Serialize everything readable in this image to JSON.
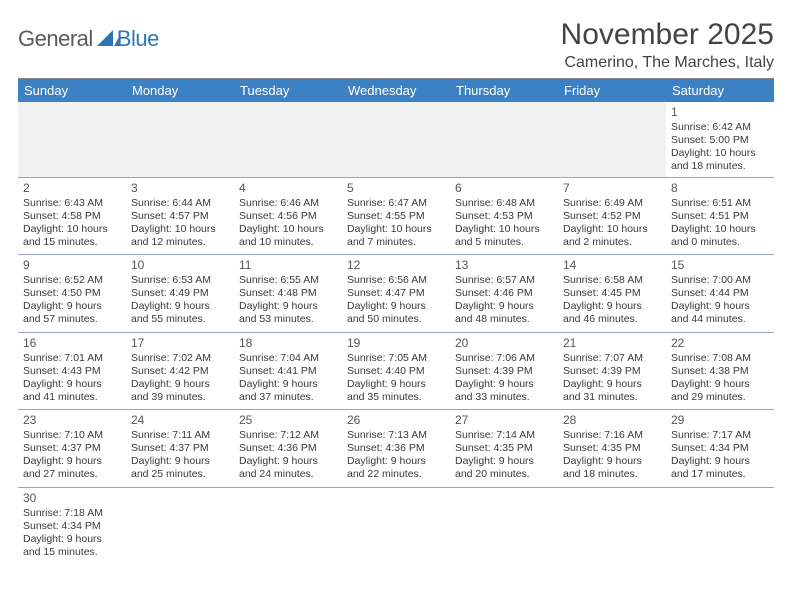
{
  "logo": {
    "general": "General",
    "blue": "Blue"
  },
  "title": "November 2025",
  "subtitle": "Camerino, The Marches, Italy",
  "colors": {
    "header_bg": "#3c81c4",
    "header_fg": "#ffffff",
    "grid_line": "#9aa6b2",
    "blank_bg": "#f1f1f1",
    "logo_gray": "#5a5a5a",
    "logo_blue": "#2e75b6"
  },
  "weekdays": [
    "Sunday",
    "Monday",
    "Tuesday",
    "Wednesday",
    "Thursday",
    "Friday",
    "Saturday"
  ],
  "weeks": [
    [
      null,
      null,
      null,
      null,
      null,
      null,
      {
        "d": "1",
        "sr": "Sunrise: 6:42 AM",
        "ss": "Sunset: 5:00 PM",
        "dl1": "Daylight: 10 hours",
        "dl2": "and 18 minutes."
      }
    ],
    [
      {
        "d": "2",
        "sr": "Sunrise: 6:43 AM",
        "ss": "Sunset: 4:58 PM",
        "dl1": "Daylight: 10 hours",
        "dl2": "and 15 minutes."
      },
      {
        "d": "3",
        "sr": "Sunrise: 6:44 AM",
        "ss": "Sunset: 4:57 PM",
        "dl1": "Daylight: 10 hours",
        "dl2": "and 12 minutes."
      },
      {
        "d": "4",
        "sr": "Sunrise: 6:46 AM",
        "ss": "Sunset: 4:56 PM",
        "dl1": "Daylight: 10 hours",
        "dl2": "and 10 minutes."
      },
      {
        "d": "5",
        "sr": "Sunrise: 6:47 AM",
        "ss": "Sunset: 4:55 PM",
        "dl1": "Daylight: 10 hours",
        "dl2": "and 7 minutes."
      },
      {
        "d": "6",
        "sr": "Sunrise: 6:48 AM",
        "ss": "Sunset: 4:53 PM",
        "dl1": "Daylight: 10 hours",
        "dl2": "and 5 minutes."
      },
      {
        "d": "7",
        "sr": "Sunrise: 6:49 AM",
        "ss": "Sunset: 4:52 PM",
        "dl1": "Daylight: 10 hours",
        "dl2": "and 2 minutes."
      },
      {
        "d": "8",
        "sr": "Sunrise: 6:51 AM",
        "ss": "Sunset: 4:51 PM",
        "dl1": "Daylight: 10 hours",
        "dl2": "and 0 minutes."
      }
    ],
    [
      {
        "d": "9",
        "sr": "Sunrise: 6:52 AM",
        "ss": "Sunset: 4:50 PM",
        "dl1": "Daylight: 9 hours",
        "dl2": "and 57 minutes."
      },
      {
        "d": "10",
        "sr": "Sunrise: 6:53 AM",
        "ss": "Sunset: 4:49 PM",
        "dl1": "Daylight: 9 hours",
        "dl2": "and 55 minutes."
      },
      {
        "d": "11",
        "sr": "Sunrise: 6:55 AM",
        "ss": "Sunset: 4:48 PM",
        "dl1": "Daylight: 9 hours",
        "dl2": "and 53 minutes."
      },
      {
        "d": "12",
        "sr": "Sunrise: 6:56 AM",
        "ss": "Sunset: 4:47 PM",
        "dl1": "Daylight: 9 hours",
        "dl2": "and 50 minutes."
      },
      {
        "d": "13",
        "sr": "Sunrise: 6:57 AM",
        "ss": "Sunset: 4:46 PM",
        "dl1": "Daylight: 9 hours",
        "dl2": "and 48 minutes."
      },
      {
        "d": "14",
        "sr": "Sunrise: 6:58 AM",
        "ss": "Sunset: 4:45 PM",
        "dl1": "Daylight: 9 hours",
        "dl2": "and 46 minutes."
      },
      {
        "d": "15",
        "sr": "Sunrise: 7:00 AM",
        "ss": "Sunset: 4:44 PM",
        "dl1": "Daylight: 9 hours",
        "dl2": "and 44 minutes."
      }
    ],
    [
      {
        "d": "16",
        "sr": "Sunrise: 7:01 AM",
        "ss": "Sunset: 4:43 PM",
        "dl1": "Daylight: 9 hours",
        "dl2": "and 41 minutes."
      },
      {
        "d": "17",
        "sr": "Sunrise: 7:02 AM",
        "ss": "Sunset: 4:42 PM",
        "dl1": "Daylight: 9 hours",
        "dl2": "and 39 minutes."
      },
      {
        "d": "18",
        "sr": "Sunrise: 7:04 AM",
        "ss": "Sunset: 4:41 PM",
        "dl1": "Daylight: 9 hours",
        "dl2": "and 37 minutes."
      },
      {
        "d": "19",
        "sr": "Sunrise: 7:05 AM",
        "ss": "Sunset: 4:40 PM",
        "dl1": "Daylight: 9 hours",
        "dl2": "and 35 minutes."
      },
      {
        "d": "20",
        "sr": "Sunrise: 7:06 AM",
        "ss": "Sunset: 4:39 PM",
        "dl1": "Daylight: 9 hours",
        "dl2": "and 33 minutes."
      },
      {
        "d": "21",
        "sr": "Sunrise: 7:07 AM",
        "ss": "Sunset: 4:39 PM",
        "dl1": "Daylight: 9 hours",
        "dl2": "and 31 minutes."
      },
      {
        "d": "22",
        "sr": "Sunrise: 7:08 AM",
        "ss": "Sunset: 4:38 PM",
        "dl1": "Daylight: 9 hours",
        "dl2": "and 29 minutes."
      }
    ],
    [
      {
        "d": "23",
        "sr": "Sunrise: 7:10 AM",
        "ss": "Sunset: 4:37 PM",
        "dl1": "Daylight: 9 hours",
        "dl2": "and 27 minutes."
      },
      {
        "d": "24",
        "sr": "Sunrise: 7:11 AM",
        "ss": "Sunset: 4:37 PM",
        "dl1": "Daylight: 9 hours",
        "dl2": "and 25 minutes."
      },
      {
        "d": "25",
        "sr": "Sunrise: 7:12 AM",
        "ss": "Sunset: 4:36 PM",
        "dl1": "Daylight: 9 hours",
        "dl2": "and 24 minutes."
      },
      {
        "d": "26",
        "sr": "Sunrise: 7:13 AM",
        "ss": "Sunset: 4:36 PM",
        "dl1": "Daylight: 9 hours",
        "dl2": "and 22 minutes."
      },
      {
        "d": "27",
        "sr": "Sunrise: 7:14 AM",
        "ss": "Sunset: 4:35 PM",
        "dl1": "Daylight: 9 hours",
        "dl2": "and 20 minutes."
      },
      {
        "d": "28",
        "sr": "Sunrise: 7:16 AM",
        "ss": "Sunset: 4:35 PM",
        "dl1": "Daylight: 9 hours",
        "dl2": "and 18 minutes."
      },
      {
        "d": "29",
        "sr": "Sunrise: 7:17 AM",
        "ss": "Sunset: 4:34 PM",
        "dl1": "Daylight: 9 hours",
        "dl2": "and 17 minutes."
      }
    ],
    [
      {
        "d": "30",
        "sr": "Sunrise: 7:18 AM",
        "ss": "Sunset: 4:34 PM",
        "dl1": "Daylight: 9 hours",
        "dl2": "and 15 minutes."
      },
      null,
      null,
      null,
      null,
      null,
      null
    ]
  ]
}
